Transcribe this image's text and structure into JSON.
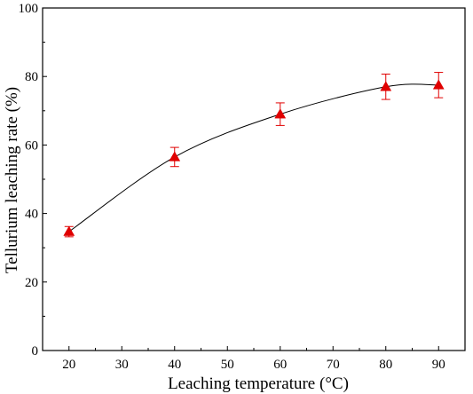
{
  "chart_data": {
    "type": "line",
    "title": "",
    "xlabel": "Leaching temperature (°C)",
    "ylabel": "Tellurium leaching rate (%)",
    "xlim": [
      15,
      95
    ],
    "ylim": [
      0,
      100
    ],
    "x_ticks": [
      20,
      30,
      40,
      50,
      60,
      70,
      80,
      90
    ],
    "y_ticks": [
      0,
      20,
      40,
      60,
      80,
      100
    ],
    "grid": false,
    "legend": "none",
    "marker": "triangle",
    "series": [
      {
        "x": [
          20,
          40,
          60,
          80,
          90
        ],
        "y": [
          34.7,
          56.5,
          69.0,
          77.0,
          77.5
        ],
        "error": [
          1.5,
          2.8,
          3.3,
          3.7,
          3.7
        ],
        "marker_color": "#e00000",
        "line_color": "#000000"
      }
    ]
  }
}
